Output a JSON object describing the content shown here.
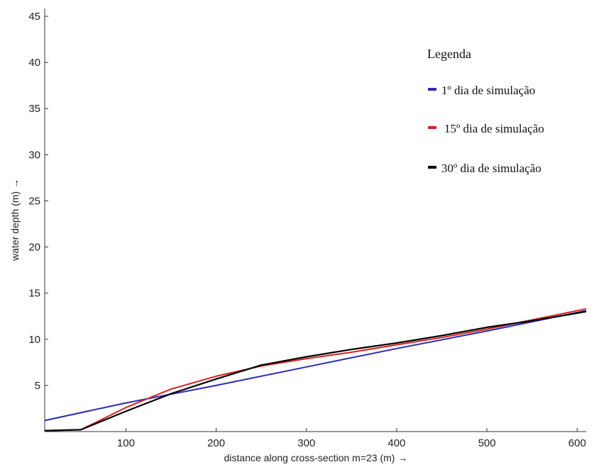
{
  "chart_data": {
    "type": "line",
    "xlabel": "distance along cross-section m=23 (m) →",
    "ylabel": "water depth (m) →",
    "xlim": [
      10,
      610
    ],
    "ylim": [
      0,
      46
    ],
    "xticks": [
      100,
      200,
      300,
      400,
      500,
      600
    ],
    "yticks": [
      5,
      10,
      15,
      20,
      25,
      30,
      35,
      40,
      45
    ],
    "grid": false,
    "legend": {
      "title": "Legenda",
      "position": "top-right"
    },
    "series": [
      {
        "name": "1º dia de simulação",
        "color": "#2b2bb0",
        "x": [
          10,
          100,
          200,
          300,
          400,
          500,
          610
        ],
        "y": [
          1.2,
          3.1,
          5.0,
          7.0,
          9.0,
          10.9,
          13.1
        ]
      },
      {
        "name": "15º dia de simulação",
        "color": "#d42020",
        "x": [
          10,
          50,
          100,
          150,
          200,
          250,
          300,
          350,
          400,
          450,
          500,
          550,
          610
        ],
        "y": [
          0.1,
          0.2,
          2.6,
          4.6,
          6.0,
          7.1,
          7.9,
          8.6,
          9.4,
          10.2,
          11.1,
          12.1,
          13.3
        ]
      },
      {
        "name": "30º dia de simulação",
        "color": "#000000",
        "x": [
          10,
          50,
          100,
          150,
          200,
          250,
          300,
          350,
          400,
          450,
          500,
          550,
          610
        ],
        "y": [
          0.1,
          0.2,
          2.2,
          4.1,
          5.7,
          7.2,
          8.1,
          8.9,
          9.6,
          10.4,
          11.3,
          12.0,
          13.0
        ]
      }
    ]
  }
}
